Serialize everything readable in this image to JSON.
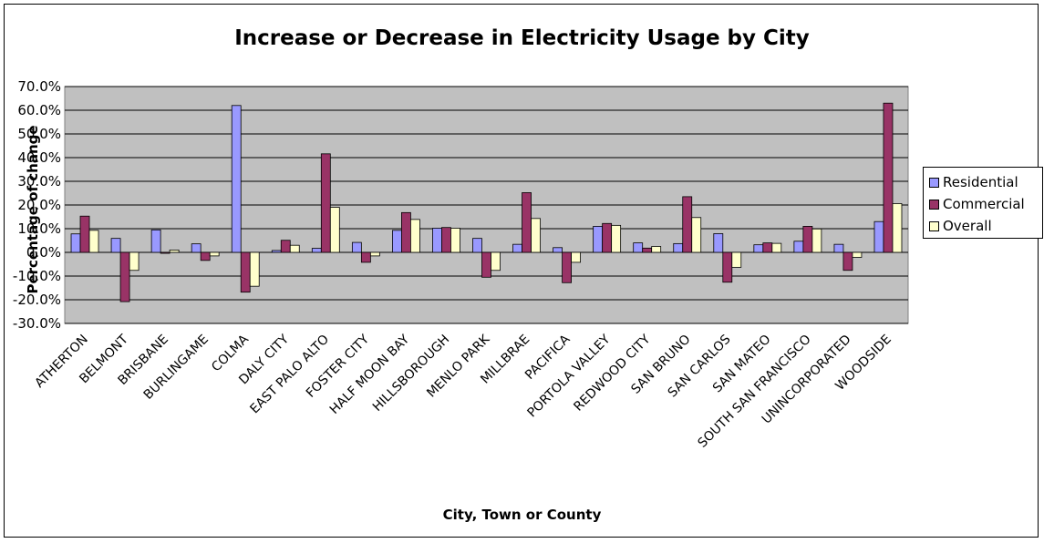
{
  "chart_data": {
    "type": "bar",
    "title": "Increase or Decrease in Electricity Usage by City",
    "xlabel": "City, Town or County",
    "ylabel": "Percentage of change",
    "ylim": [
      -30,
      70
    ],
    "ytick_step": 10,
    "ytick_format": "percent_one_decimal",
    "grid": true,
    "legend_position": "right",
    "colors": {
      "Residential": "#9999ff",
      "Commercial": "#993366",
      "Overall": "#ffffcc",
      "plot_background": "#c0c0c0",
      "gridline": "#000000"
    },
    "categories": [
      "ATHERTON",
      "BELMONT",
      "BRISBANE",
      "BURLINGAME",
      "COLMA",
      "DALY CITY",
      "EAST PALO ALTO",
      "FOSTER CITY",
      "HALF MOON BAY",
      "HILLSBOROUGH",
      "MENLO PARK",
      "MILLBRAE",
      "PACIFICA",
      "PORTOLA VALLEY",
      "REDWOOD CITY",
      "SAN BRUNO",
      "SAN CARLOS",
      "SAN MATEO",
      "SOUTH SAN FRANCISCO",
      "UNINCORPORATED",
      "WOODSIDE"
    ],
    "series": [
      {
        "name": "Residential",
        "values": [
          7.8,
          5.9,
          9.5,
          3.6,
          62.0,
          0.8,
          1.7,
          4.2,
          9.3,
          10.2,
          5.9,
          3.4,
          2.0,
          11.0,
          4.0,
          3.7,
          7.9,
          3.2,
          4.7,
          3.4,
          13.0
        ]
      },
      {
        "name": "Commercial",
        "values": [
          15.3,
          -20.8,
          -0.4,
          -3.4,
          -16.8,
          5.1,
          41.6,
          -4.2,
          16.8,
          10.5,
          -10.5,
          25.2,
          -12.8,
          12.2,
          1.8,
          23.5,
          -12.6,
          4.0,
          11.0,
          -7.6,
          63.0
        ]
      },
      {
        "name": "Overall",
        "values": [
          9.3,
          -7.6,
          1.0,
          -1.5,
          -14.3,
          3.0,
          19.0,
          -1.5,
          13.9,
          10.2,
          -7.6,
          14.3,
          -4.2,
          11.4,
          2.5,
          14.7,
          -6.3,
          3.8,
          9.9,
          -2.1,
          20.6
        ]
      }
    ]
  }
}
